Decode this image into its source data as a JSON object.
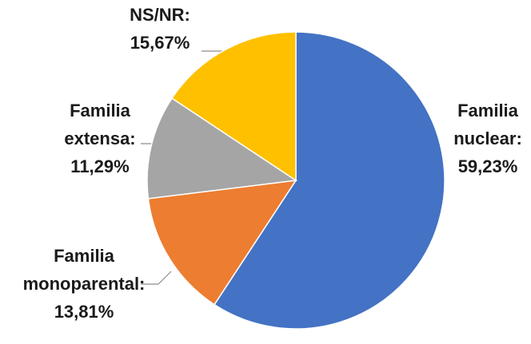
{
  "chart_data": {
    "type": "pie",
    "categories": [
      "Familia nuclear:",
      "Familia monoparental:",
      "Familia extensa:",
      "NS/NR:"
    ],
    "values": [
      59.23,
      13.81,
      11.29,
      15.67
    ],
    "value_labels": [
      "59,23%",
      "13,81%",
      "11,29%",
      "15,67%"
    ],
    "colors": [
      "#4472c4",
      "#ed7d31",
      "#a5a5a5",
      "#ffc000"
    ]
  }
}
